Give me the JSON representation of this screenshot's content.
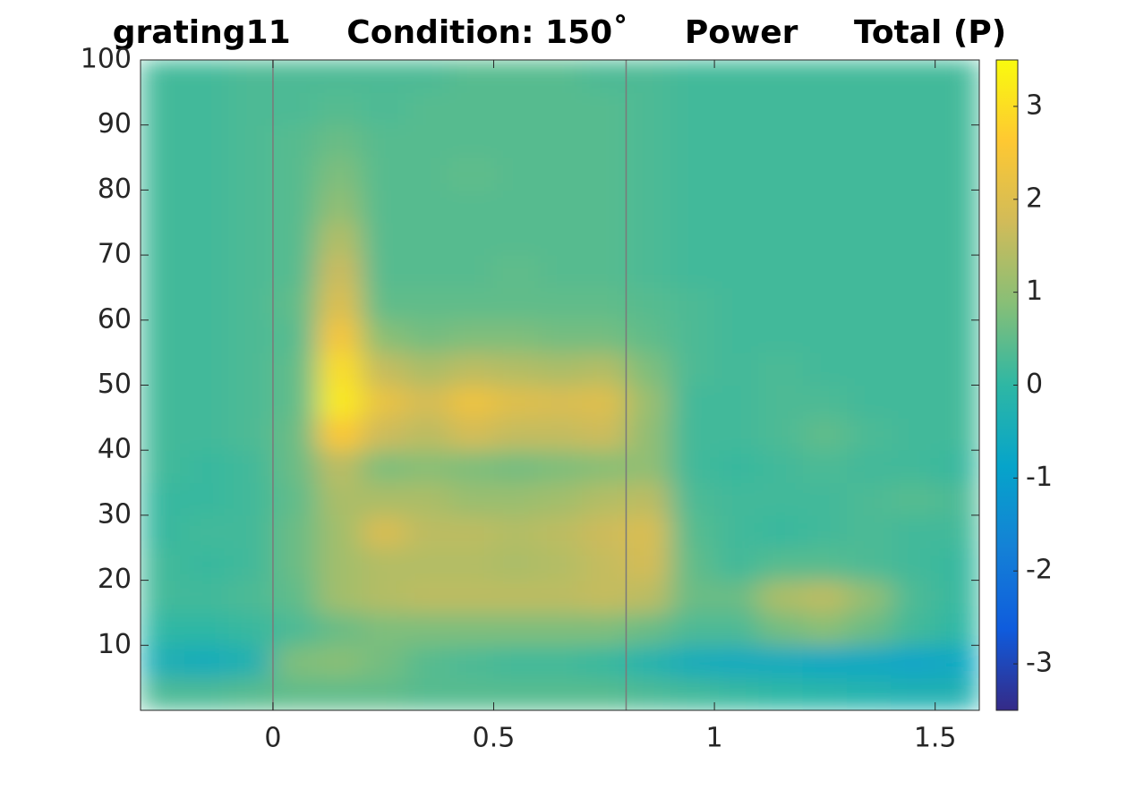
{
  "chart_data": {
    "type": "heatmap",
    "title": "grating11     Condition: 150˚     Power     Total (P)",
    "x": [
      -0.25,
      -0.15,
      -0.05,
      0.05,
      0.15,
      0.25,
      0.35,
      0.45,
      0.55,
      0.65,
      0.75,
      0.85,
      0.95,
      1.05,
      1.15,
      1.25,
      1.35,
      1.45,
      1.55
    ],
    "y": [
      2.5,
      7.5,
      12.5,
      17.5,
      22.5,
      27.5,
      32.5,
      37.5,
      42.5,
      47.5,
      52.5,
      57.5,
      62.5,
      67.5,
      72.5,
      77.5,
      82.5,
      87.5,
      92.5,
      97.5
    ],
    "z": [
      [
        0.3,
        0.3,
        0.4,
        0.5,
        0.5,
        0.5,
        0.4,
        0.4,
        0.4,
        0.4,
        0.4,
        0.3,
        0.2,
        0.1,
        0,
        -0.1,
        -0.2,
        -0.3,
        -0.3
      ],
      [
        -0.4,
        -0.5,
        -0.3,
        0.8,
        0.9,
        0.7,
        0.4,
        0.3,
        0.2,
        0.2,
        0.1,
        -0.2,
        -0.5,
        -0.6,
        -0.6,
        -0.7,
        -0.7,
        -0.8,
        -0.7
      ],
      [
        0,
        0,
        0.1,
        0.3,
        0.6,
        0.8,
        0.8,
        0.8,
        0.8,
        0.8,
        0.8,
        0.6,
        0.3,
        0.3,
        0.7,
        0.9,
        0.6,
        0.2,
        0
      ],
      [
        0.2,
        0.2,
        0.3,
        0.5,
        1.2,
        1.4,
        1.5,
        1.5,
        1.5,
        1.5,
        1.6,
        1.5,
        0.6,
        0.6,
        1.3,
        1.5,
        1.0,
        0.3,
        0.1
      ],
      [
        0.2,
        0.1,
        0.2,
        0.6,
        1.2,
        1.4,
        1.4,
        1.4,
        1.3,
        1.4,
        1.6,
        1.8,
        0.5,
        0.2,
        0.4,
        0.4,
        0.3,
        0.2,
        0.1
      ],
      [
        0.1,
        0.2,
        0.2,
        0.6,
        1.2,
        1.9,
        1.5,
        1.5,
        1.4,
        1.5,
        1.7,
        1.9,
        0.4,
        0.2,
        0.1,
        0.2,
        0.3,
        0.2,
        0.2
      ],
      [
        0.1,
        0.1,
        0.2,
        0.5,
        1.3,
        1.3,
        1.3,
        1.1,
        1.1,
        1.2,
        1.4,
        1.5,
        0.3,
        0.2,
        0.2,
        0.2,
        0.3,
        0.4,
        0.3
      ],
      [
        0.2,
        0.1,
        0.2,
        0.6,
        1.5,
        0.8,
        0.9,
        0.8,
        0.7,
        0.8,
        0.9,
        1.0,
        0.2,
        0.1,
        0.2,
        0.3,
        0.2,
        0.2,
        0.1
      ],
      [
        0.2,
        0.2,
        0.3,
        0.6,
        2.6,
        1.7,
        1.5,
        1.8,
        1.6,
        1.6,
        1.7,
        1.0,
        0.2,
        0.2,
        0.3,
        0.5,
        0.3,
        0.2,
        0.2
      ],
      [
        0.2,
        0.2,
        0.3,
        0.5,
        3.2,
        2.2,
        1.8,
        2.3,
        2.0,
        1.9,
        2.0,
        1.1,
        0.2,
        0.2,
        0.3,
        0.3,
        0.2,
        0.2,
        0.2
      ],
      [
        0.2,
        0.2,
        0.3,
        0.5,
        3.0,
        1.6,
        1.3,
        1.5,
        1.4,
        1.3,
        1.4,
        0.8,
        0.3,
        0.2,
        0.3,
        0.2,
        0.2,
        0.2,
        0.2
      ],
      [
        0.2,
        0.2,
        0.3,
        0.4,
        2.5,
        0.9,
        0.7,
        0.8,
        0.8,
        0.7,
        0.7,
        0.5,
        0.3,
        0.2,
        0.2,
        0.2,
        0.2,
        0.2,
        0.2
      ],
      [
        0.2,
        0.2,
        0.3,
        0.5,
        2.0,
        0.5,
        0.5,
        0.5,
        0.5,
        0.5,
        0.5,
        0.4,
        0.3,
        0.2,
        0.2,
        0.2,
        0.2,
        0.2,
        0.2
      ],
      [
        0.2,
        0.2,
        0.3,
        0.4,
        1.7,
        0.4,
        0.4,
        0.4,
        0.5,
        0.4,
        0.4,
        0.3,
        0.2,
        0.2,
        0.2,
        0.2,
        0.2,
        0.2,
        0.2
      ],
      [
        0.2,
        0.2,
        0.3,
        0.4,
        1.4,
        0.4,
        0.4,
        0.4,
        0.4,
        0.4,
        0.4,
        0.3,
        0.2,
        0.2,
        0.2,
        0.2,
        0.2,
        0.2,
        0.2
      ],
      [
        0.2,
        0.2,
        0.3,
        0.4,
        1.0,
        0.4,
        0.4,
        0.4,
        0.4,
        0.4,
        0.4,
        0.3,
        0.2,
        0.2,
        0.2,
        0.2,
        0.2,
        0.2,
        0.2
      ],
      [
        0.2,
        0.2,
        0.3,
        0.4,
        0.8,
        0.4,
        0.4,
        0.5,
        0.4,
        0.4,
        0.4,
        0.3,
        0.2,
        0.2,
        0.2,
        0.2,
        0.2,
        0.2,
        0.2
      ],
      [
        0.2,
        0.2,
        0.3,
        0.4,
        0.6,
        0.4,
        0.4,
        0.4,
        0.4,
        0.4,
        0.4,
        0.3,
        0.2,
        0.2,
        0.2,
        0.2,
        0.2,
        0.2,
        0.2
      ],
      [
        0.2,
        0.2,
        0.3,
        0.3,
        0.4,
        0.3,
        0.4,
        0.4,
        0.4,
        0.4,
        0.4,
        0.3,
        0.2,
        0.2,
        0.2,
        0.2,
        0.2,
        0.2,
        0.2
      ],
      [
        0.2,
        0.2,
        0.3,
        0.3,
        0.3,
        0.3,
        0.3,
        0.4,
        0.4,
        0.4,
        0.3,
        0.3,
        0.2,
        0.2,
        0.2,
        0.2,
        0.2,
        0.2,
        0.2
      ]
    ],
    "xlim": [
      -0.3,
      1.6
    ],
    "ylim": [
      0,
      100
    ],
    "xticks": [
      0,
      0.5,
      1,
      1.5
    ],
    "yticks": [
      10,
      20,
      30,
      40,
      50,
      60,
      70,
      80,
      90,
      100
    ],
    "clim": [
      -3.5,
      3.5
    ],
    "cticks": [
      -3,
      -2,
      -1,
      0,
      1,
      2,
      3
    ],
    "colormap": "parula",
    "vlines": [
      0,
      0.8
    ],
    "vline_color": "#7a7a7a"
  }
}
